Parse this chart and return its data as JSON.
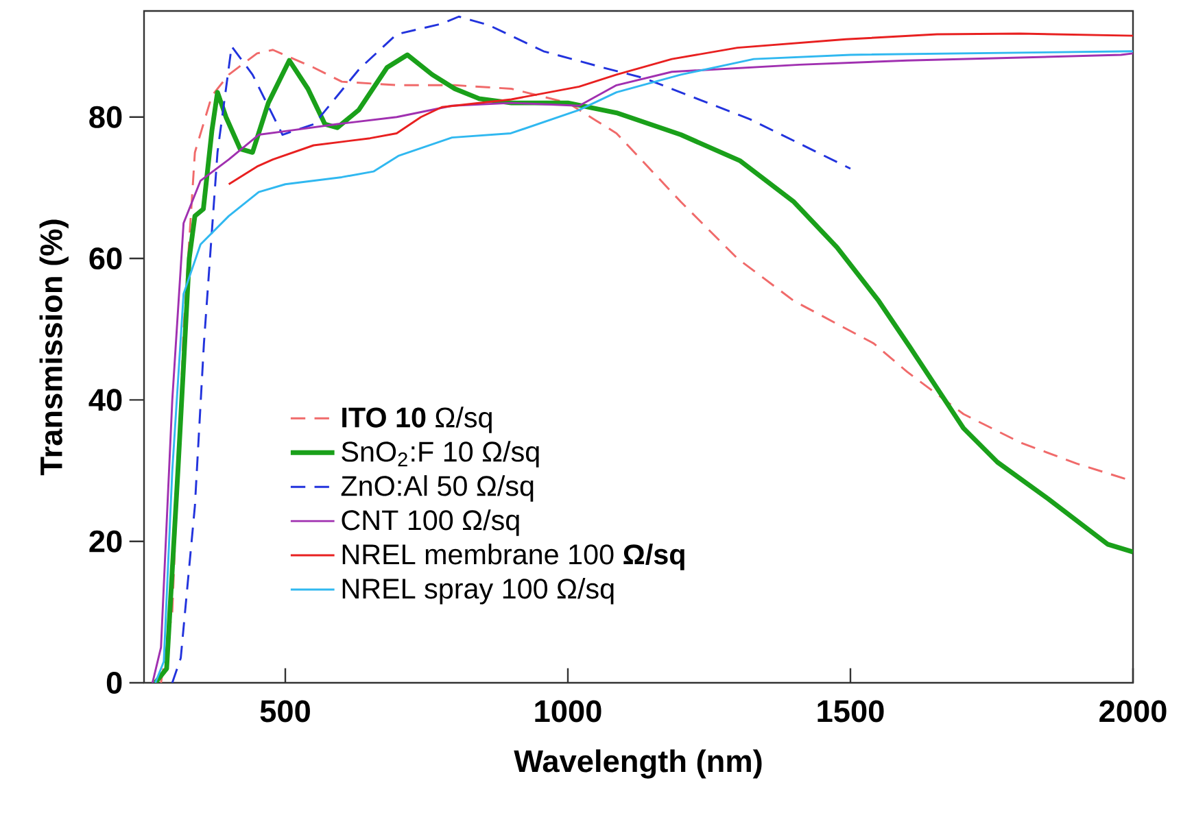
{
  "chart_data": {
    "type": "line",
    "xlabel": "Wavelength (nm)",
    "ylabel": "Transmission (%)",
    "xlim": [
      250,
      2000
    ],
    "ylim": [
      0,
      95
    ],
    "xticks": [
      500,
      1000,
      1500,
      2000
    ],
    "yticks": [
      0,
      20,
      40,
      60,
      80
    ],
    "grid": false,
    "legend": "bottom left",
    "marker": "none",
    "series": [
      {
        "name": "**ITO 10**  Ω/sq",
        "color": "#f06a6a",
        "line_style": "dashed",
        "x": [
          280,
          300,
          320,
          340,
          370,
          400,
          450,
          478,
          550,
          600,
          700,
          800,
          900,
          1000,
          1050,
          1086,
          1200,
          1300,
          1400,
          1541,
          1600,
          1700,
          1800,
          1900,
          2000
        ],
        "values": [
          0,
          10,
          50,
          75,
          83,
          86,
          89,
          89.5,
          87,
          85,
          84.5,
          84.5,
          84,
          82,
          79.5,
          77.7,
          68,
          60,
          54,
          48,
          44,
          38,
          34,
          31,
          28.5
        ]
      },
      {
        "name": "SnO$_{2}$:F 10 Ω/sq",
        "color": "#1aa01a",
        "line_style": "solid",
        "x": [
          270,
          290,
          310,
          330,
          340,
          355,
          370,
          380,
          395,
          420,
          442,
          470,
          507,
          540,
          570,
          592,
          630,
          680,
          716,
          760,
          800,
          843,
          900,
          1000,
          1086,
          1200,
          1305,
          1400,
          1476,
          1550,
          1605,
          1700,
          1760,
          1850,
          1955,
          2000
        ],
        "values": [
          0,
          2,
          30,
          60,
          66,
          67,
          78,
          83.5,
          80,
          75.5,
          75,
          82,
          88,
          84,
          79,
          78.5,
          81,
          87,
          88.8,
          86,
          84,
          82.6,
          82,
          82,
          80.6,
          77.5,
          73.8,
          68,
          61.6,
          54,
          47.5,
          36,
          31.2,
          26,
          19.6,
          18.5
        ]
      },
      {
        "name": "ZnO:Al  50 Ω/sq",
        "color": "#2233dd",
        "line_style": "dashed",
        "x": [
          300,
          315,
          340,
          356,
          380,
          405,
          442,
          495,
          551,
          631,
          697,
          777,
          807,
          860,
          957,
          1062,
          1135,
          1322,
          1500
        ],
        "values": [
          0,
          3.5,
          25,
          48,
          75,
          90,
          86,
          77.5,
          79,
          86.8,
          91.7,
          93.2,
          94.2,
          93,
          89.3,
          87,
          85.5,
          79.7,
          72.7
        ]
      },
      {
        "name": "CNT 100 Ω/sq",
        "color": "#a030b0",
        "line_style": "solid",
        "x": [
          265,
          280,
          300,
          320,
          350,
          400,
          453,
          500,
          592,
          697,
          795,
          900,
          1020,
          1086,
          1184,
          1410,
          1600,
          1800,
          1979,
          2000
        ],
        "values": [
          0,
          5,
          40,
          65,
          71,
          74,
          77.5,
          78,
          79,
          80,
          81.6,
          82,
          81.6,
          84.5,
          86.4,
          87.4,
          88,
          88.4,
          88.8,
          89
        ]
      },
      {
        "name": "NREL membrane 100 **Ω/sq**",
        "color": "#e82020",
        "line_style": "solid",
        "x": [
          400,
          450,
          478,
          550,
          600,
          650,
          697,
          740,
          777,
          900,
          1020,
          1086,
          1184,
          1300,
          1492,
          1653,
          1800,
          2000
        ],
        "values": [
          70.5,
          73,
          74,
          76,
          76.5,
          77,
          77.7,
          80,
          81.4,
          82.5,
          84.3,
          86,
          88.2,
          89.8,
          91,
          91.7,
          91.8,
          91.5
        ]
      },
      {
        "name": "NREL spray 100 Ω/sq",
        "color": "#30b8f0",
        "line_style": "solid",
        "x": [
          270,
          285,
          300,
          320,
          350,
          400,
          453,
          500,
          600,
          656,
          700,
          795,
          899,
          1020,
          1086,
          1200,
          1329,
          1500,
          2000
        ],
        "values": [
          0,
          3,
          30,
          55,
          62,
          66,
          69.4,
          70.5,
          71.5,
          72.3,
          74.5,
          77.1,
          77.7,
          81,
          83.5,
          86,
          88.2,
          88.8,
          89.3
        ]
      }
    ]
  }
}
